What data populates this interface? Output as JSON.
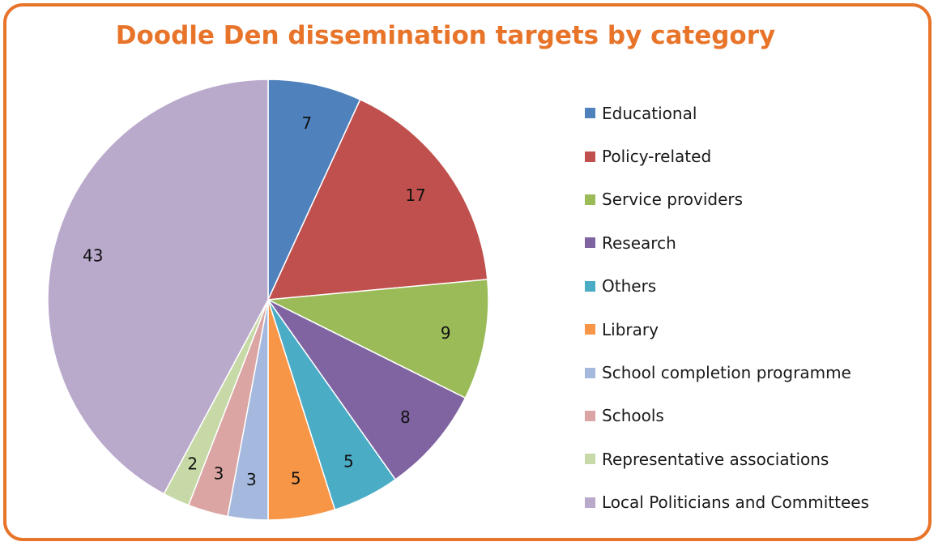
{
  "chart_data": {
    "type": "pie",
    "title": "Doodle Den dissemination targets by category",
    "legend_position": "right",
    "series": [
      {
        "name": "Educational",
        "value": 7,
        "color": "#4f81bd"
      },
      {
        "name": "Policy-related",
        "value": 17,
        "color": "#c0504d"
      },
      {
        "name": "Service providers",
        "value": 9,
        "color": "#9bbb59"
      },
      {
        "name": "Research",
        "value": 8,
        "color": "#8064a2"
      },
      {
        "name": "Others",
        "value": 5,
        "color": "#4bacc6"
      },
      {
        "name": "Library",
        "value": 5,
        "color": "#f79646"
      },
      {
        "name": "School completion programme",
        "value": 3,
        "color": "#a5b9de"
      },
      {
        "name": "Schools",
        "value": 3,
        "color": "#dba5a4"
      },
      {
        "name": "Representative associations",
        "value": 2,
        "color": "#c7d9a7"
      },
      {
        "name": "Local Politicians and Committees",
        "value": 43,
        "color": "#b9a9cb"
      }
    ]
  },
  "colors": {
    "frame_border": "#e8742a",
    "title_color": "#e8742a"
  }
}
